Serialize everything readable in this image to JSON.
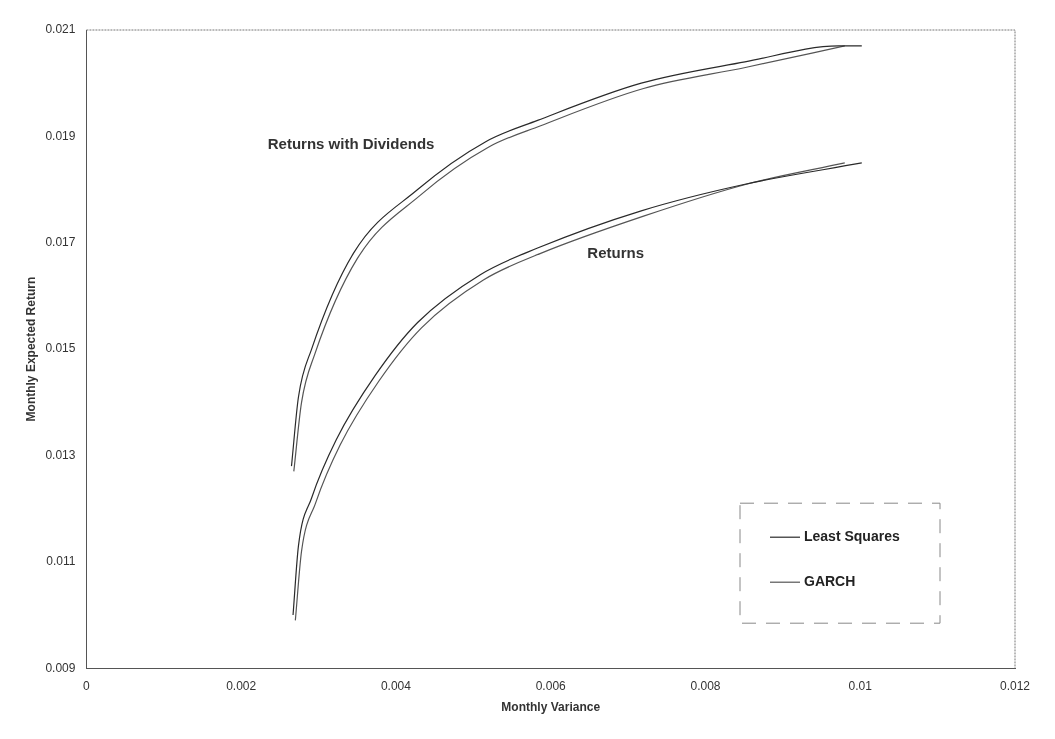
{
  "chart_data": {
    "type": "line",
    "xlabel": "Monthly Variance",
    "ylabel": "Monthly Expected Return",
    "xlim": [
      0,
      0.012
    ],
    "xticks": [
      0,
      0.002,
      0.004,
      0.006,
      0.008,
      0.01,
      0.012
    ],
    "ylim": [
      0.009,
      0.021
    ],
    "yticks": [
      0.009,
      0.011,
      0.013,
      0.015,
      0.017,
      0.019,
      0.021
    ],
    "grid": false,
    "legend": "bottom right",
    "marker": "none",
    "line_style": "solid",
    "series": [
      {
        "name": "Least Squares",
        "color": "#2a2a2a",
        "x": [
          0.00267,
          0.00274,
          0.00291,
          0.00323,
          0.00373,
          0.00428,
          0.00509,
          0.00583,
          0.00717,
          0.00851,
          0.01002
        ],
        "values": [
          0.01,
          0.0113,
          0.0122,
          0.0133,
          0.0145,
          0.0155,
          0.0164,
          0.0169,
          0.0176,
          0.0181,
          0.0185
        ]
      },
      {
        "name": "GARCH",
        "color": "#555555",
        "x": [
          0.0027,
          0.00278,
          0.00296,
          0.00328,
          0.00378,
          0.00433,
          0.00513,
          0.00587,
          0.0072,
          0.00853,
          0.0098
        ],
        "values": [
          0.0099,
          0.0112,
          0.0121,
          0.0132,
          0.0144,
          0.0154,
          0.0163,
          0.0168,
          0.0175,
          0.0181,
          0.0185
        ]
      },
      {
        "color": "#2a2a2a",
        "x": [
          0.00265,
          0.00274,
          0.00291,
          0.00345,
          0.00428,
          0.00516,
          0.00583,
          0.00717,
          0.00851,
          0.00972,
          0.01002
        ],
        "values": [
          0.0128,
          0.0141,
          0.015,
          0.0168,
          0.018,
          0.0189,
          0.0193,
          0.02,
          0.0204,
          0.0207,
          0.0207
        ]
      },
      {
        "color": "#555555",
        "x": [
          0.00268,
          0.00278,
          0.00295,
          0.0035,
          0.00432,
          0.0052,
          0.00587,
          0.0072,
          0.00853,
          0.0098
        ],
        "values": [
          0.0127,
          0.014,
          0.0149,
          0.0167,
          0.0179,
          0.0188,
          0.0192,
          0.0199,
          0.0203,
          0.0207
        ]
      }
    ],
    "annotations": [
      "Returns with Dividends",
      "Returns"
    ]
  }
}
